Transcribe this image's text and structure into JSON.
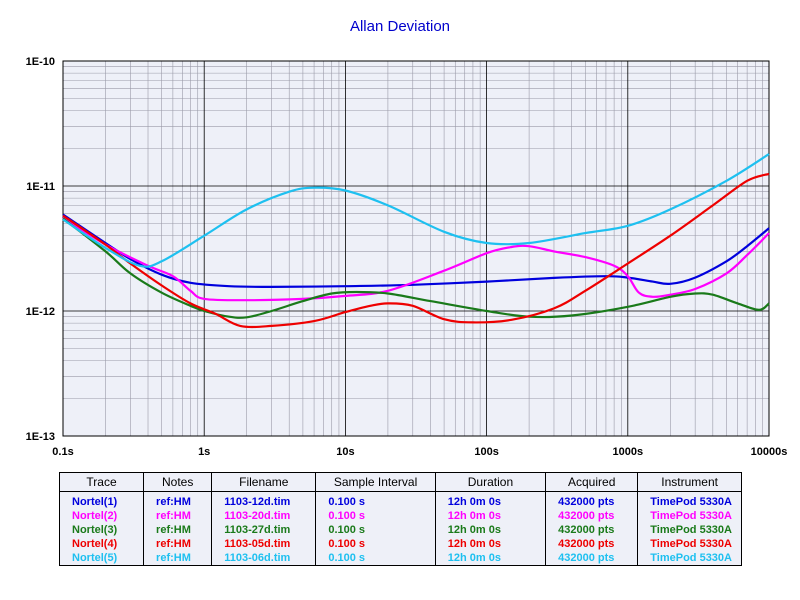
{
  "chart_data": {
    "type": "line",
    "title": "Allan Deviation",
    "xscale": "log",
    "yscale": "log",
    "xlim": [
      0.1,
      10000
    ],
    "ylim": [
      1e-13,
      1e-10
    ],
    "grid": true,
    "xticks": [
      "0.1s",
      "1s",
      "10s",
      "100s",
      "1000s",
      "10000s"
    ],
    "yticks": [
      "1E-10",
      "1E-11",
      "1E-12",
      "1E-13"
    ],
    "series": [
      {
        "name": "Nortel(1)",
        "color": "#0000dd",
        "points": [
          [
            0.1,
            5.9e-12
          ],
          [
            0.2,
            3.5e-12
          ],
          [
            0.3,
            2.6e-12
          ],
          [
            0.5,
            1.95e-12
          ],
          [
            0.8,
            1.68e-12
          ],
          [
            1.5,
            1.58e-12
          ],
          [
            3,
            1.56e-12
          ],
          [
            10,
            1.58e-12
          ],
          [
            30,
            1.62e-12
          ],
          [
            100,
            1.72e-12
          ],
          [
            300,
            1.84e-12
          ],
          [
            700,
            1.9e-12
          ],
          [
            1000,
            1.85e-12
          ],
          [
            1500,
            1.72e-12
          ],
          [
            2000,
            1.65e-12
          ],
          [
            3000,
            1.85e-12
          ],
          [
            5000,
            2.5e-12
          ],
          [
            7000,
            3.3e-12
          ],
          [
            10000,
            4.6e-12
          ]
        ]
      },
      {
        "name": "Nortel(2)",
        "color": "#ff00ff",
        "points": [
          [
            0.1,
            5.6e-12
          ],
          [
            0.2,
            3.4e-12
          ],
          [
            0.4,
            2.3e-12
          ],
          [
            0.6,
            1.9e-12
          ],
          [
            0.8,
            1.45e-12
          ],
          [
            1,
            1.25e-12
          ],
          [
            2,
            1.22e-12
          ],
          [
            5,
            1.25e-12
          ],
          [
            10,
            1.32e-12
          ],
          [
            20,
            1.45e-12
          ],
          [
            50,
            2.1e-12
          ],
          [
            100,
            2.9e-12
          ],
          [
            150,
            3.25e-12
          ],
          [
            200,
            3.3e-12
          ],
          [
            300,
            3e-12
          ],
          [
            500,
            2.7e-12
          ],
          [
            800,
            2.3e-12
          ],
          [
            1000,
            1.9e-12
          ],
          [
            1200,
            1.4e-12
          ],
          [
            1500,
            1.3e-12
          ],
          [
            2000,
            1.35e-12
          ],
          [
            3000,
            1.5e-12
          ],
          [
            5000,
            2e-12
          ],
          [
            7000,
            2.8e-12
          ],
          [
            10000,
            4.2e-12
          ]
        ]
      },
      {
        "name": "Nortel(3)",
        "color": "#1a7a1a",
        "points": [
          [
            0.1,
            5.5e-12
          ],
          [
            0.2,
            3e-12
          ],
          [
            0.3,
            2e-12
          ],
          [
            0.5,
            1.4e-12
          ],
          [
            0.8,
            1.1e-12
          ],
          [
            1,
            1e-12
          ],
          [
            1.5,
            9e-13
          ],
          [
            2,
            8.9e-13
          ],
          [
            3,
            1e-12
          ],
          [
            5,
            1.2e-12
          ],
          [
            8,
            1.38e-12
          ],
          [
            12,
            1.42e-12
          ],
          [
            20,
            1.38e-12
          ],
          [
            40,
            1.2e-12
          ],
          [
            100,
            1e-12
          ],
          [
            200,
            9e-13
          ],
          [
            400,
            9.2e-13
          ],
          [
            1000,
            1.08e-12
          ],
          [
            2000,
            1.3e-12
          ],
          [
            3000,
            1.38e-12
          ],
          [
            4000,
            1.35e-12
          ],
          [
            6000,
            1.15e-12
          ],
          [
            8500,
            1.02e-12
          ],
          [
            10000,
            1.15e-12
          ]
        ]
      },
      {
        "name": "Nortel(4)",
        "color": "#ee0000",
        "points": [
          [
            0.1,
            5.8e-12
          ],
          [
            0.2,
            3.4e-12
          ],
          [
            0.3,
            2.4e-12
          ],
          [
            0.5,
            1.6e-12
          ],
          [
            0.8,
            1.15e-12
          ],
          [
            1.2,
            9.5e-13
          ],
          [
            1.8,
            7.6e-13
          ],
          [
            3,
            7.6e-13
          ],
          [
            6,
            8.3e-13
          ],
          [
            10,
            9.8e-13
          ],
          [
            15,
            1.1e-12
          ],
          [
            20,
            1.15e-12
          ],
          [
            30,
            1.1e-12
          ],
          [
            50,
            8.6e-13
          ],
          [
            80,
            8.1e-13
          ],
          [
            150,
            8.5e-13
          ],
          [
            300,
            1.05e-12
          ],
          [
            500,
            1.45e-12
          ],
          [
            1000,
            2.4e-12
          ],
          [
            2000,
            4e-12
          ],
          [
            4000,
            7e-12
          ],
          [
            7000,
            1.1e-11
          ],
          [
            10000,
            1.25e-11
          ]
        ]
      },
      {
        "name": "Nortel(5)",
        "color": "#1ec0f0",
        "points": [
          [
            0.1,
            5.4e-12
          ],
          [
            0.2,
            3.2e-12
          ],
          [
            0.35,
            2.3e-12
          ],
          [
            0.5,
            2.5e-12
          ],
          [
            1,
            4e-12
          ],
          [
            2,
            6.5e-12
          ],
          [
            4,
            9e-12
          ],
          [
            6,
            9.7e-12
          ],
          [
            10,
            9.2e-12
          ],
          [
            20,
            7e-12
          ],
          [
            50,
            4.3e-12
          ],
          [
            100,
            3.5e-12
          ],
          [
            200,
            3.5e-12
          ],
          [
            500,
            4.2e-12
          ],
          [
            1000,
            4.8e-12
          ],
          [
            2000,
            6.5e-12
          ],
          [
            5000,
            1.1e-11
          ],
          [
            10000,
            1.8e-11
          ]
        ]
      }
    ]
  },
  "legend": {
    "headers": [
      "Trace",
      "Notes",
      "Filename",
      "Sample Interval",
      "Duration",
      "Acquired",
      "Instrument"
    ],
    "rows": [
      {
        "color": "#0000dd",
        "trace": "Nortel(1)",
        "notes": "ref:HM",
        "filename": "1103-12d.tim",
        "interval": "0.100 s",
        "duration": "12h 0m 0s",
        "acquired": "432000 pts",
        "instrument": "TimePod 5330A"
      },
      {
        "color": "#ff00ff",
        "trace": "Nortel(2)",
        "notes": "ref:HM",
        "filename": "1103-20d.tim",
        "interval": "0.100 s",
        "duration": "12h 0m 0s",
        "acquired": "432000 pts",
        "instrument": "TimePod 5330A"
      },
      {
        "color": "#1a7a1a",
        "trace": "Nortel(3)",
        "notes": "ref:HM",
        "filename": "1103-27d.tim",
        "interval": "0.100 s",
        "duration": "12h 0m 0s",
        "acquired": "432000 pts",
        "instrument": "TimePod 5330A"
      },
      {
        "color": "#ee0000",
        "trace": "Nortel(4)",
        "notes": "ref:HM",
        "filename": "1103-05d.tim",
        "interval": "0.100 s",
        "duration": "12h 0m 0s",
        "acquired": "432000 pts",
        "instrument": "TimePod 5330A"
      },
      {
        "color": "#1ec0f0",
        "trace": "Nortel(5)",
        "notes": "ref:HM",
        "filename": "1103-06d.tim",
        "interval": "0.100 s",
        "duration": "12h 0m 0s",
        "acquired": "432000 pts",
        "instrument": "TimePod 5330A"
      }
    ]
  }
}
